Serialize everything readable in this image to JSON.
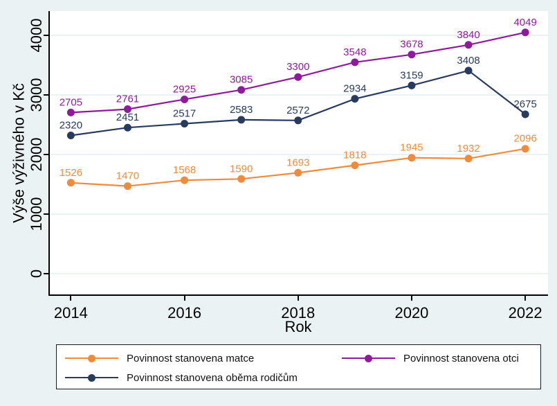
{
  "figure": {
    "background": "#EAF2F3",
    "plot_background": "#FFFFFF",
    "grid_color": "#E3EDEF",
    "axis_color": "#000000"
  },
  "chart_data": {
    "type": "line",
    "title": "",
    "xlabel": "Rok",
    "ylabel": "Výše výživného v Kč",
    "x": [
      2014,
      2015,
      2016,
      2017,
      2018,
      2019,
      2020,
      2021,
      2022
    ],
    "xticks": [
      2014,
      2016,
      2018,
      2020,
      2022
    ],
    "yticks": [
      0,
      1000,
      2000,
      3000,
      4000
    ],
    "xlim": [
      2013.63,
      2022.4
    ],
    "ylim": [
      -349,
      4407
    ],
    "grid": true,
    "point_labels": true,
    "legend_position": "bottom",
    "series": [
      {
        "name": "Povinnost stanovena matce",
        "color": "#F08B3B",
        "values": [
          1526,
          1470,
          1568,
          1590,
          1693,
          1818,
          1945,
          1932,
          2096
        ]
      },
      {
        "name": "Povinnost stanovena otci",
        "color": "#8E1B9B",
        "values": [
          2705,
          2761,
          2925,
          3085,
          3300,
          3548,
          3678,
          3840,
          4049
        ]
      },
      {
        "name": "Povinnost stanovena oběma rodičům",
        "color": "#283A5E",
        "values": [
          2320,
          2451,
          2517,
          2583,
          2572,
          2934,
          3159,
          3408,
          2675
        ]
      }
    ]
  },
  "legend": {
    "row1_col1_series": 0,
    "row1_col2_series": 1,
    "row2_col1_series": 2
  }
}
